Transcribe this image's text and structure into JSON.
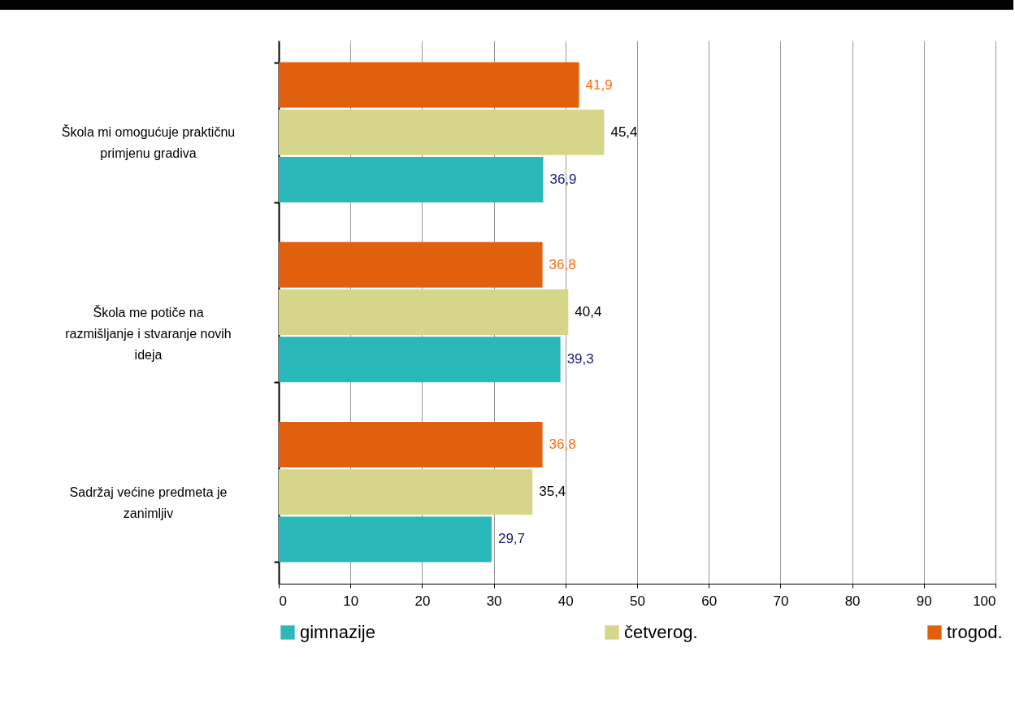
{
  "chart_data": {
    "type": "bar",
    "orientation": "horizontal",
    "categories": [
      "Škola mi omogućuje praktičnu primjenu gradiva",
      "Škola me potiče na razmišljanje i stvaranje novih ideja",
      "Sadržaj većine predmeta je zanimljiv"
    ],
    "series": [
      {
        "name": "gimnazije",
        "color": "#2bb8b8",
        "values": [
          36.9,
          39.3,
          29.7
        ],
        "value_labels": [
          "36,9",
          "39,3",
          "29,7"
        ]
      },
      {
        "name": "četverog.",
        "color": "#d6d68a",
        "values": [
          45.4,
          40.4,
          35.4
        ],
        "value_labels": [
          "45,4",
          "40,4",
          "35,4"
        ]
      },
      {
        "name": "trogod.",
        "color": "#e0600e",
        "values": [
          41.9,
          36.8,
          36.8
        ],
        "value_labels": [
          "41,9",
          "36,8",
          "36,8"
        ]
      }
    ],
    "xlim": [
      0,
      100
    ],
    "xticks": [
      0,
      10,
      20,
      30,
      40,
      50,
      60,
      70,
      80,
      90,
      100
    ],
    "grid": "x",
    "legend": "bottom"
  }
}
